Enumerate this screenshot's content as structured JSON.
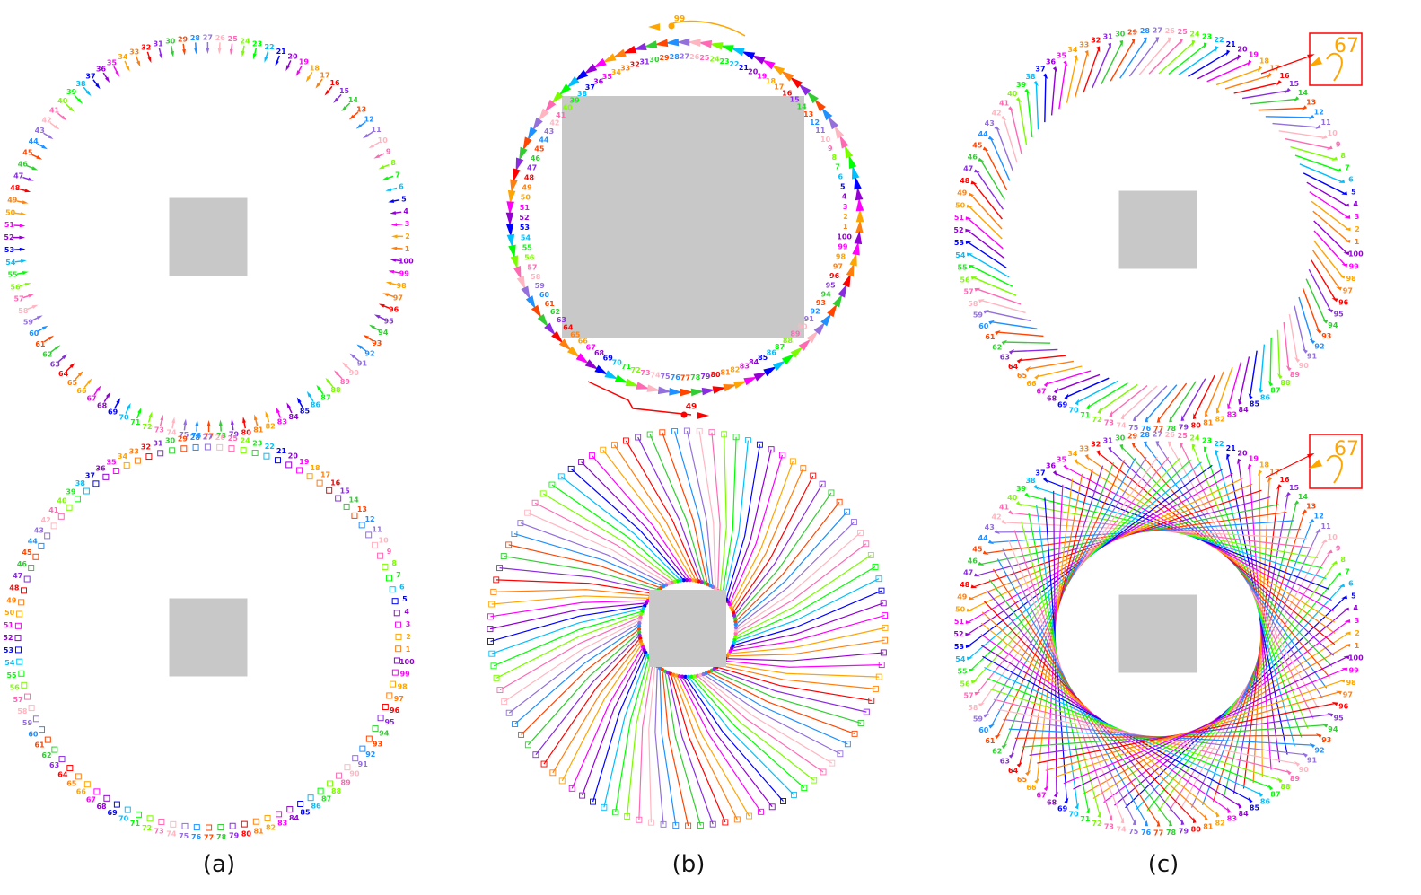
{
  "captions": [
    "(a)",
    "(b)",
    "(c)"
  ],
  "agent_count": 100,
  "palette": [
    "#ff0000",
    "#ff7f0e",
    "#ffa500",
    "#ff00ff",
    "#9400d3",
    "#0000ff",
    "#00bfff",
    "#00ff00",
    "#7cfc00",
    "#ff69b4",
    "#ffb6c1",
    "#9370db",
    "#1e90ff",
    "#ff4500",
    "#32cd32",
    "#8a2be2"
  ],
  "obstacle_color": "#c8c8c8",
  "highlight_color": "#ff0000",
  "panels": {
    "a_top": {
      "kind": "arrows-at-start",
      "obstacle": "small-square"
    },
    "a_bottom": {
      "kind": "markers-at-start",
      "obstacle": "small-square"
    },
    "b_top": {
      "kind": "deadlocked-ring",
      "obstacle": "large-square",
      "annotations": [
        {
          "label": "99",
          "color": "#ffa500"
        },
        {
          "label": "49",
          "color": "#ff0000"
        }
      ]
    },
    "b_bottom": {
      "kind": "radial-trajectories",
      "obstacle": "small-square-with-ring"
    },
    "c_top": {
      "kind": "short-tracks",
      "obstacle": "small-square",
      "zoom_label": "67",
      "zoom_color": "#ffa500"
    },
    "c_bottom": {
      "kind": "crossing-trajectories",
      "obstacle": "small-square-with-ring",
      "zoom_label": "67",
      "zoom_color": "#ffa500"
    }
  }
}
